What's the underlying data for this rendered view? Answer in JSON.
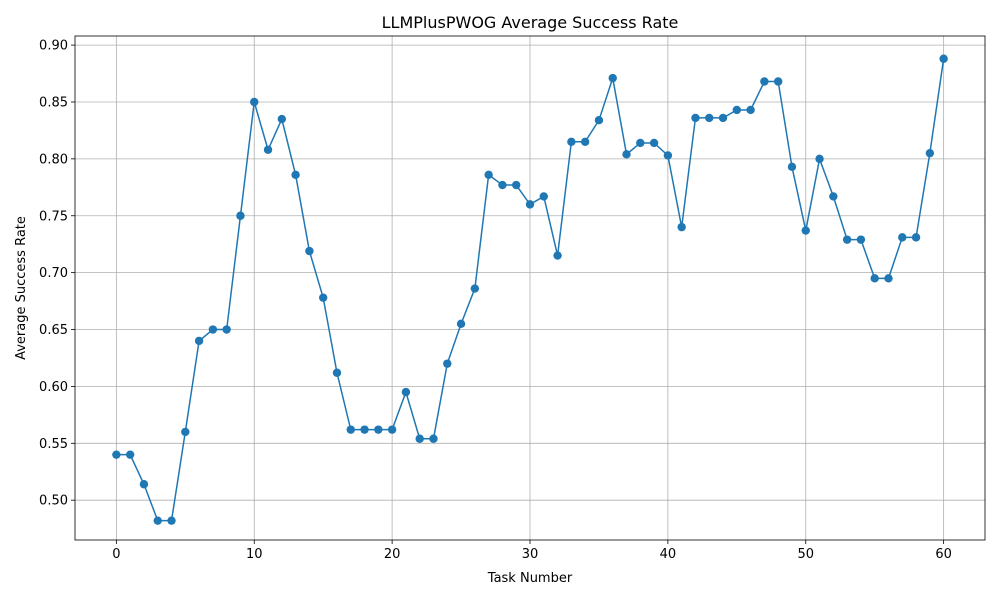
{
  "chart_data": {
    "type": "line",
    "title": "LLMPlusPWOG Average Success Rate",
    "xlabel": "Task Number",
    "ylabel": "Average Success Rate",
    "xlim": [
      -3,
      63
    ],
    "ylim": [
      0.465,
      0.908
    ],
    "xticks": [
      0,
      10,
      20,
      30,
      40,
      50,
      60
    ],
    "yticks": [
      0.5,
      0.55,
      0.6,
      0.65,
      0.7,
      0.75,
      0.8,
      0.85,
      0.9
    ],
    "grid": true,
    "series": [
      {
        "color": "#1f77b4",
        "marker": "circle",
        "x": [
          0,
          1,
          2,
          3,
          4,
          5,
          6,
          7,
          8,
          9,
          10,
          11,
          12,
          13,
          14,
          15,
          16,
          17,
          18,
          19,
          20,
          21,
          22,
          23,
          24,
          25,
          26,
          27,
          28,
          29,
          30,
          31,
          32,
          33,
          34,
          35,
          36,
          37,
          38,
          39,
          40,
          41,
          42,
          43,
          44,
          45,
          46,
          47,
          48,
          49,
          50,
          51,
          52,
          53,
          54,
          55,
          56,
          57,
          58,
          59,
          60
        ],
        "values": [
          0.54,
          0.54,
          0.514,
          0.482,
          0.482,
          0.56,
          0.64,
          0.65,
          0.65,
          0.75,
          0.85,
          0.808,
          0.835,
          0.786,
          0.719,
          0.678,
          0.612,
          0.562,
          0.562,
          0.562,
          0.562,
          0.595,
          0.554,
          0.554,
          0.62,
          0.655,
          0.686,
          0.786,
          0.777,
          0.777,
          0.76,
          0.767,
          0.715,
          0.815,
          0.815,
          0.834,
          0.871,
          0.804,
          0.814,
          0.814,
          0.803,
          0.74,
          0.836,
          0.836,
          0.836,
          0.843,
          0.843,
          0.868,
          0.868,
          0.793,
          0.737,
          0.8,
          0.767,
          0.729,
          0.729,
          0.695,
          0.695,
          0.731,
          0.731,
          0.805,
          0.888
        ]
      }
    ]
  }
}
